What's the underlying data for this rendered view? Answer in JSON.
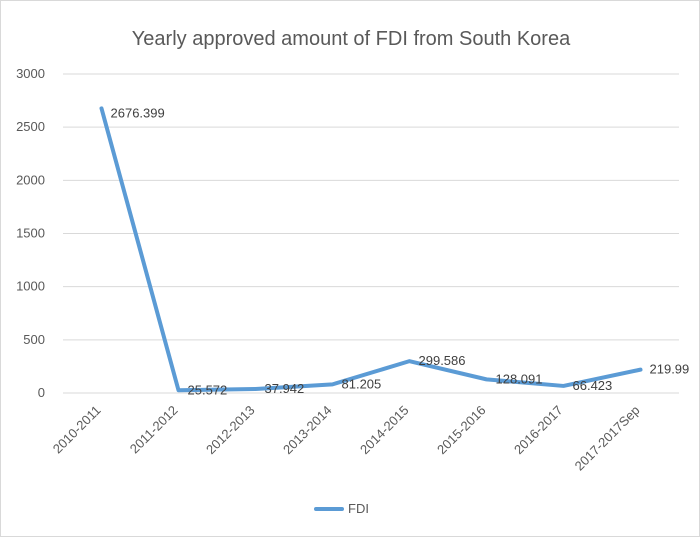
{
  "chart_data": {
    "type": "line",
    "title": "Yearly approved amount of FDI from South Korea",
    "xlabel": "",
    "ylabel": "",
    "categories": [
      "2010-2011",
      "2011-2012",
      "2012-2013",
      "2013-2014",
      "2014-2015",
      "2015-2016",
      "2016-2017",
      "2017-2017Sep"
    ],
    "series": [
      {
        "name": "FDI",
        "values": [
          2676.399,
          25.572,
          37.942,
          81.205,
          299.586,
          128.091,
          66.423,
          219.99
        ],
        "labels": [
          "2676.399",
          "25.572",
          "37.942",
          "81.205",
          "299.586",
          "128.091",
          "66.423",
          "219.99"
        ]
      }
    ],
    "ylim": [
      0,
      3000
    ],
    "yticks": [
      0,
      500,
      1000,
      1500,
      2000,
      2500,
      3000
    ],
    "grid": true,
    "legend": "bottom",
    "colors": {
      "series": "#5b9bd5",
      "grid": "#d9d9d9",
      "text": "#595959"
    }
  }
}
